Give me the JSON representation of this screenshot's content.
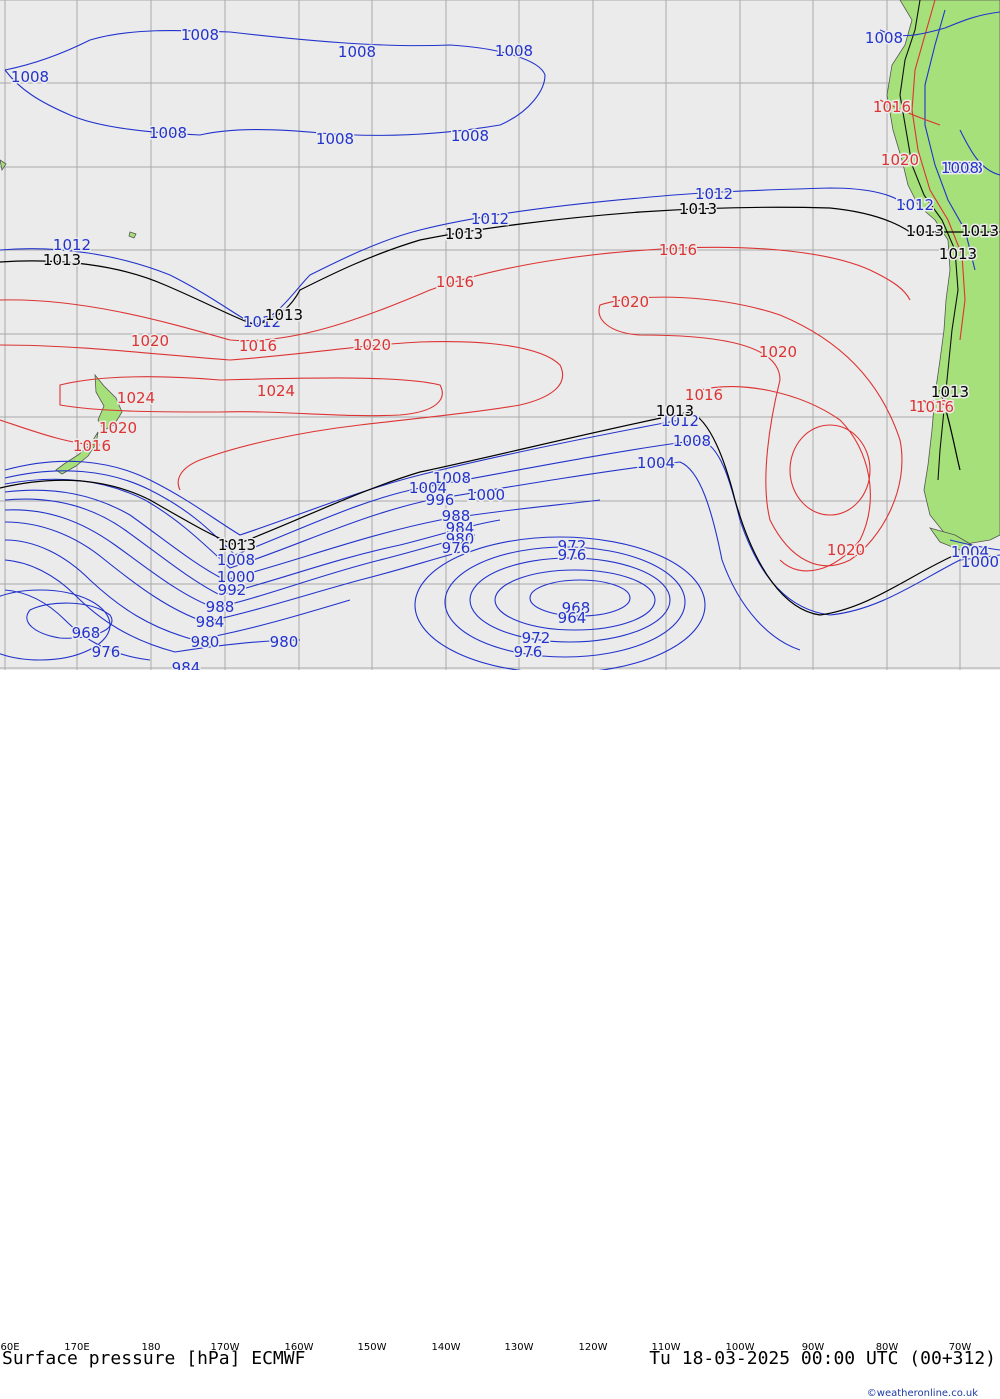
{
  "title": "Surface pressure [hPa] ECMWF",
  "valid_time": "Tu 18-03-2025 00:00 UTC (00+312)",
  "credit": "©weatheronline.co.uk",
  "colors": {
    "ocean": "#ebebeb",
    "land": "#a6e07a",
    "grid": "#a9a9a9",
    "low_isobar": "#2233cc",
    "high_isobar": "#dd3333",
    "reference_isobar": "#000000"
  },
  "lon_ticks": [
    "60E",
    "170E",
    "180",
    "170W",
    "160W",
    "150W",
    "140W",
    "130W",
    "120W",
    "110W",
    "100W",
    "90W",
    "80W",
    "70W"
  ],
  "isobar_labels": {
    "blue": [
      "1008",
      "1008",
      "1008",
      "1008",
      "1008",
      "1008",
      "1008",
      "1008",
      "1012",
      "1012",
      "1012",
      "1012",
      "1012",
      "1012",
      "1008",
      "1004",
      "1008",
      "1004",
      "996",
      "1000",
      "988",
      "984",
      "980",
      "976",
      "972",
      "976",
      "968",
      "964",
      "972",
      "976",
      "1008",
      "1000",
      "992",
      "988",
      "984",
      "980",
      "980",
      "968",
      "976",
      "984",
      "1004",
      "1000",
      "1008",
      "1008"
    ],
    "black": [
      "1013",
      "1013",
      "1013",
      "1013",
      "1013",
      "1013",
      "1013",
      "1013",
      "1013",
      "1013"
    ],
    "red": [
      "1016",
      "1016",
      "1016",
      "1016",
      "1016",
      "1016",
      "1020",
      "1020",
      "1020",
      "1020",
      "1020",
      "1024",
      "1024",
      "1020",
      "1016",
      "1016",
      "1020"
    ]
  }
}
